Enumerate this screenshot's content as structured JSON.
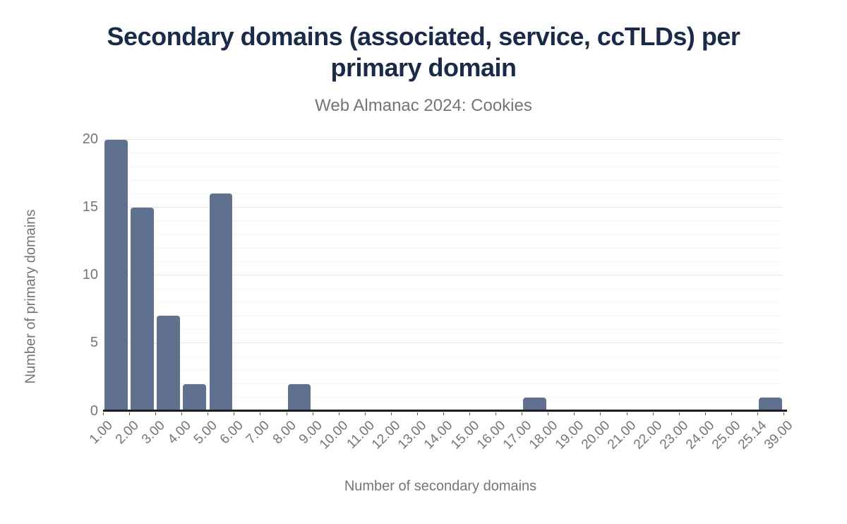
{
  "chart_data": {
    "type": "bar",
    "subtype": "histogram",
    "title": "Secondary domains (associated, service, ccTLDs) per primary domain",
    "subtitle": "Web Almanac 2024: Cookies",
    "xlabel": "Number of secondary domains",
    "ylabel": "Number of primary domains",
    "bin_edges": [
      "1.00",
      "2.00",
      "3.00",
      "4.00",
      "5.00",
      "6.00",
      "7.00",
      "8.00",
      "9.00",
      "10.00",
      "11.00",
      "12.00",
      "13.00",
      "14.00",
      "15.00",
      "16.00",
      "17.00",
      "18.00",
      "19.00",
      "20.00",
      "21.00",
      "22.00",
      "23.00",
      "24.00",
      "25.00",
      "25.14",
      "39.00"
    ],
    "values": [
      20,
      15,
      7,
      2,
      16,
      0,
      0,
      2,
      0,
      0,
      0,
      0,
      0,
      0,
      0,
      0,
      1,
      0,
      0,
      0,
      0,
      0,
      0,
      0,
      0,
      1
    ],
    "y_ticks": [
      0,
      5,
      10,
      15,
      20
    ],
    "ylim": [
      0,
      20
    ],
    "grid": "horizontal: minor every 1 unit, major every 5 units",
    "legend": "none",
    "colors": {
      "bar": "#5f718f",
      "title": "#1a2b49",
      "subtitle": "#757575",
      "axis_text": "#757575",
      "axis_line": "#1e1e1e",
      "grid_minor": "#f6f6f6",
      "grid_major": "#e6e6e6"
    }
  }
}
